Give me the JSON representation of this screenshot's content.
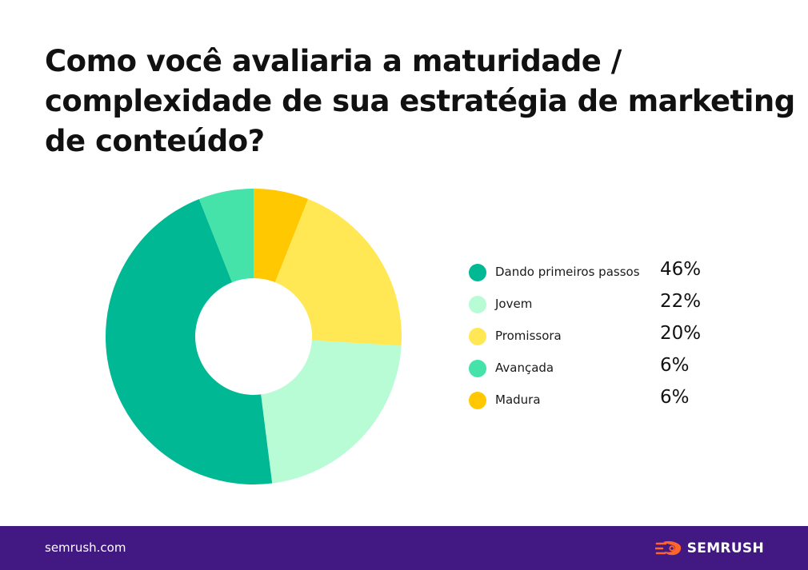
{
  "chart_data": {
    "type": "pie",
    "variant": "donut",
    "title_lines": [
      "Como você avaliaria a maturidade /",
      "complexidade de sua estratégia de marketing",
      "de conteúdo?"
    ],
    "slices": [
      {
        "label": "Dando primeiros passos",
        "value": 46,
        "display": "46%",
        "color": "#00b894"
      },
      {
        "label": "Jovem",
        "value": 22,
        "display": "22%",
        "color": "#b8fcd6"
      },
      {
        "label": "Promissora",
        "value": 20,
        "display": "20%",
        "color": "#ffe853"
      },
      {
        "label": "Avançada",
        "value": 6,
        "display": "6%",
        "color": "#45e2aa"
      },
      {
        "label": "Madura",
        "value": 6,
        "display": "6%",
        "color": "#ffc800"
      }
    ],
    "drawing_order": [
      4,
      2,
      1,
      0,
      3
    ],
    "legend_position": "right"
  },
  "footer": {
    "url": "semrush.com",
    "brand": "SEMRUSH",
    "background_color": "#421983",
    "brand_icon": "semrush-flame-icon",
    "brand_icon_color": "#ff642d"
  }
}
